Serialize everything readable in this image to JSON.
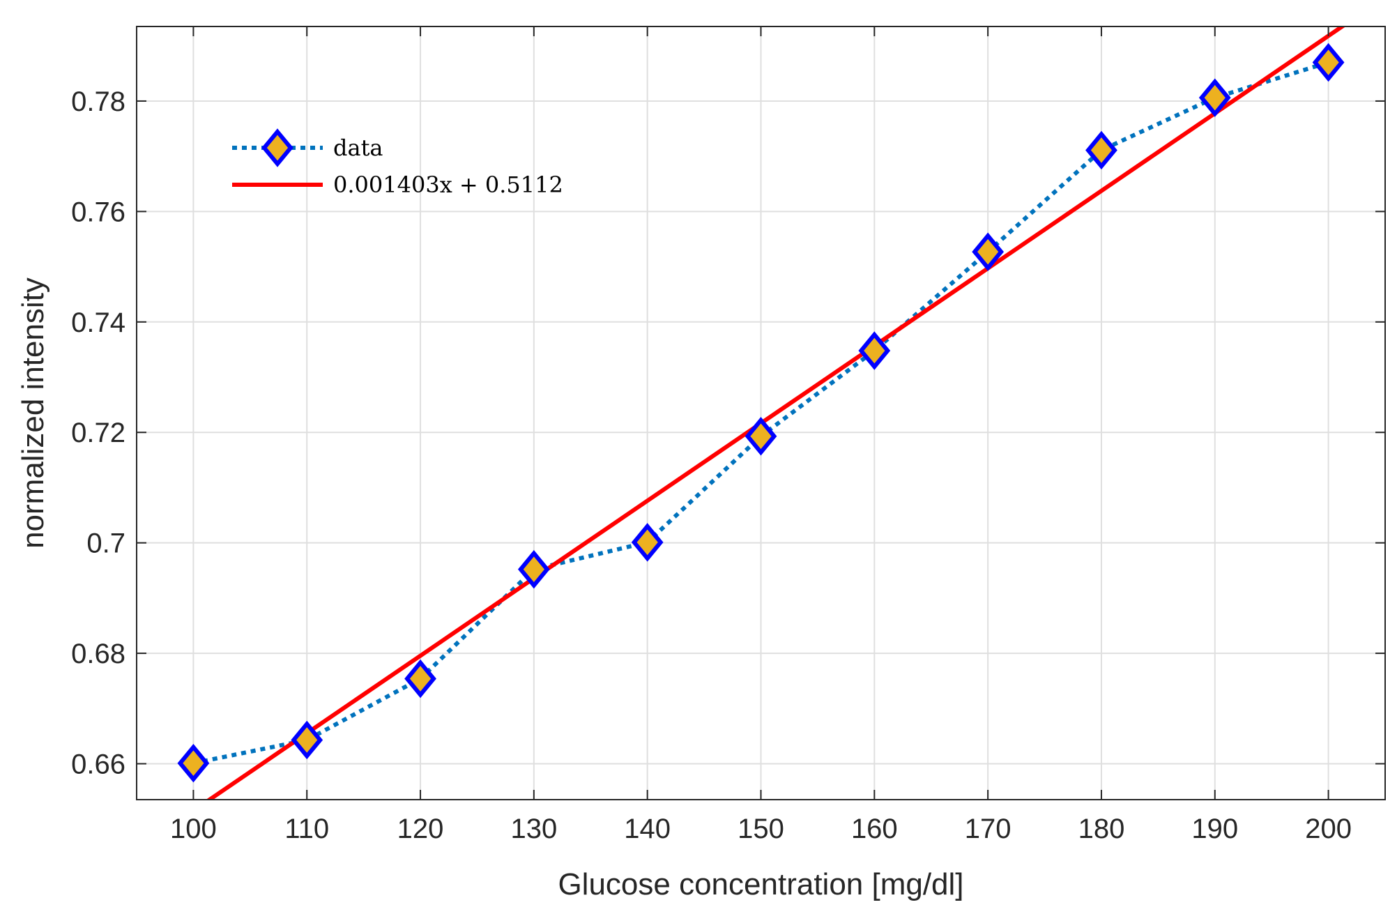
{
  "chart_data": {
    "type": "line",
    "title": "",
    "xlabel": "Glucose concentration [mg/dl]",
    "ylabel": "normalized intensity",
    "xlim": [
      95,
      205
    ],
    "ylim": [
      0.6535,
      0.7935
    ],
    "x_ticks": [
      100,
      110,
      120,
      130,
      140,
      150,
      160,
      170,
      180,
      190,
      200
    ],
    "x_tick_labels": [
      "100",
      "110",
      "120",
      "130",
      "140",
      "150",
      "160",
      "170",
      "180",
      "190",
      "200"
    ],
    "y_ticks": [
      0.66,
      0.68,
      0.7,
      0.72,
      0.74,
      0.76,
      0.78
    ],
    "y_tick_labels": [
      "0.66",
      "0.68",
      "0.7",
      "0.72",
      "0.74",
      "0.76",
      "0.78"
    ],
    "grid": true,
    "legend_position": "top-left",
    "series": [
      {
        "name": "data",
        "style": "dotted line with diamond markers",
        "line_color": "#0072BD",
        "marker_face": "#EDB120",
        "marker_edge": "#0000FF",
        "x": [
          100,
          110,
          120,
          130,
          140,
          150,
          160,
          170,
          180,
          190,
          200
        ],
        "y": [
          0.6601,
          0.6643,
          0.6754,
          0.6952,
          0.7001,
          0.7193,
          0.7348,
          0.7527,
          0.7711,
          0.7806,
          0.787
        ]
      },
      {
        "name": "0.001403x + 0.5112",
        "style": "solid line",
        "line_color": "#FF0000",
        "slope": 0.001403,
        "intercept": 0.5112
      }
    ]
  }
}
